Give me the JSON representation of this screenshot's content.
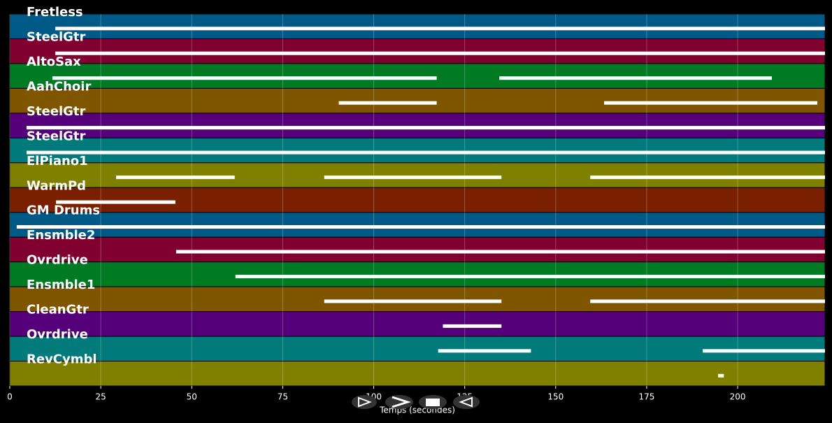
{
  "chart_data": {
    "type": "timeline",
    "xlabel": "Temps (secondes)",
    "xlim": [
      0,
      224
    ],
    "xticks": [
      0,
      25,
      50,
      75,
      100,
      125,
      150,
      175,
      200
    ],
    "grid": true,
    "note_color": "#ffffff",
    "tracks": [
      {
        "name": "Fretless",
        "color": "#005a87",
        "segments": [
          [
            12.5,
            224
          ]
        ]
      },
      {
        "name": "SteelGtr",
        "color": "#80002f",
        "segments": [
          [
            12.5,
            224
          ]
        ]
      },
      {
        "name": "AltoSax",
        "color": "#007a23",
        "segments": [
          [
            11.7,
            117.3
          ],
          [
            134.5,
            209.4
          ]
        ]
      },
      {
        "name": "AahChoir",
        "color": "#805500",
        "segments": [
          [
            90.4,
            117.3
          ],
          [
            163.3,
            221.9
          ]
        ]
      },
      {
        "name": "SteelGtr",
        "color": "#55007a",
        "segments": [
          [
            4.6,
            224
          ]
        ]
      },
      {
        "name": "SteelGtr",
        "color": "#007a7a",
        "segments": [
          [
            4.6,
            224
          ]
        ]
      },
      {
        "name": "ElPiano1",
        "color": "#808000",
        "segments": [
          [
            29.2,
            61.8
          ],
          [
            86.4,
            135.1
          ],
          [
            159.5,
            224
          ]
        ]
      },
      {
        "name": "WarmPd",
        "color": "#7a2000",
        "segments": [
          [
            12.7,
            45.5
          ]
        ]
      },
      {
        "name": "GM Drums",
        "color": "#005a87",
        "segments": [
          [
            1.9,
            224
          ]
        ]
      },
      {
        "name": "Ensmble2",
        "color": "#80002f",
        "segments": [
          [
            45.7,
            224
          ]
        ]
      },
      {
        "name": "Ovrdrive",
        "color": "#007a23",
        "segments": [
          [
            62,
            224
          ]
        ]
      },
      {
        "name": "Ensmble1",
        "color": "#805500",
        "segments": [
          [
            86.4,
            135.1
          ],
          [
            159.5,
            224
          ]
        ]
      },
      {
        "name": "CleanGtr",
        "color": "#55007a",
        "segments": [
          [
            119,
            135.1
          ]
        ]
      },
      {
        "name": "Ovrdrive",
        "color": "#007a7a",
        "segments": [
          [
            117.7,
            143.2
          ],
          [
            190.4,
            224
          ]
        ]
      },
      {
        "name": "RevCymbl",
        "color": "#808000",
        "segments": [
          [
            194.6,
            196.2
          ]
        ]
      }
    ]
  }
}
